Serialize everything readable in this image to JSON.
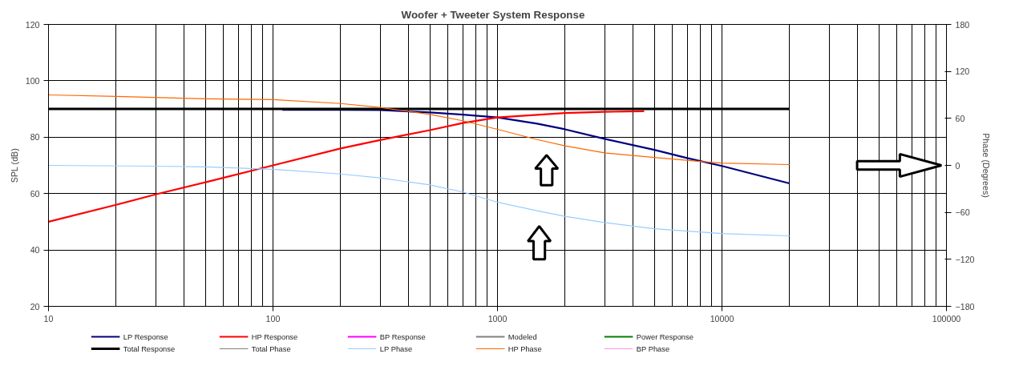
{
  "chart_data": {
    "type": "line",
    "title": "Woofer + Tweeter    System Response",
    "xlabel": null,
    "ylabel": "SPL (dB)",
    "y2label": "Phase (Degrees)",
    "log": "x",
    "xlim": [
      10,
      100000
    ],
    "xticks": [
      10,
      100,
      1000,
      10000,
      100000
    ],
    "ylim": [
      20,
      120
    ],
    "yticks": [
      20,
      40,
      60,
      80,
      100,
      120
    ],
    "y2lim": [
      -180,
      180
    ],
    "y2ticks": [
      -180,
      -120,
      -60,
      0,
      60,
      120,
      180
    ],
    "grid": true,
    "legend": "bottom",
    "marker": "none",
    "line_style": "solid",
    "series": [
      {
        "name": "LP Response",
        "color": "#000080",
        "x": [
          110,
          200,
          300,
          500,
          700,
          1000,
          1500,
          2000,
          3000,
          5000,
          7000,
          10000,
          20000
        ],
        "values": [
          89.7,
          89.7,
          89.6,
          88.8,
          88,
          87,
          84.8,
          82.8,
          79.4,
          75.5,
          72.6,
          69.8,
          63.6
        ]
      },
      {
        "name": "HP Response",
        "color": "#ff0000",
        "x": [
          10,
          20,
          30,
          50,
          100,
          200,
          300,
          500,
          700,
          1000,
          2000,
          3000,
          4500
        ],
        "values": [
          50,
          56,
          59.7,
          64,
          70,
          76,
          79,
          82.5,
          85,
          87,
          88.6,
          89,
          89.2
        ]
      },
      {
        "name": "BP Response",
        "color": "#ff00ff"
      },
      {
        "name": "Modeled",
        "color": "#808080"
      },
      {
        "name": "Power Response",
        "color": "#008000"
      },
      {
        "name": "Total Response",
        "color": "#000000",
        "x": [
          10,
          20000
        ],
        "values": [
          90,
          90
        ]
      },
      {
        "name": "Total Phase",
        "color": "#808080",
        "axis": "y2"
      },
      {
        "name": "LP Phase",
        "color": "#99ccff",
        "axis": "y2",
        "x": [
          10,
          30,
          50,
          100,
          200,
          300,
          500,
          700,
          1000,
          1500,
          2000,
          3000,
          5000,
          10000,
          20000
        ],
        "values": [
          0,
          -1,
          -2,
          -5,
          -11,
          -16,
          -25,
          -34,
          -47,
          -58,
          -65,
          -73,
          -81,
          -87,
          -90
        ]
      },
      {
        "name": "HP Phase",
        "color": "#ff6600",
        "axis": "y2",
        "x": [
          10,
          20,
          50,
          100,
          200,
          300,
          500,
          700,
          1000,
          1500,
          2000,
          3000,
          5000,
          8000,
          10000,
          20000
        ],
        "values": [
          90,
          88,
          85,
          84,
          79,
          74,
          65,
          57,
          46,
          33,
          25,
          16,
          10,
          5,
          3,
          1
        ]
      },
      {
        "name": "BP Phase",
        "color": "#ff99cc",
        "axis": "y2"
      }
    ]
  }
}
